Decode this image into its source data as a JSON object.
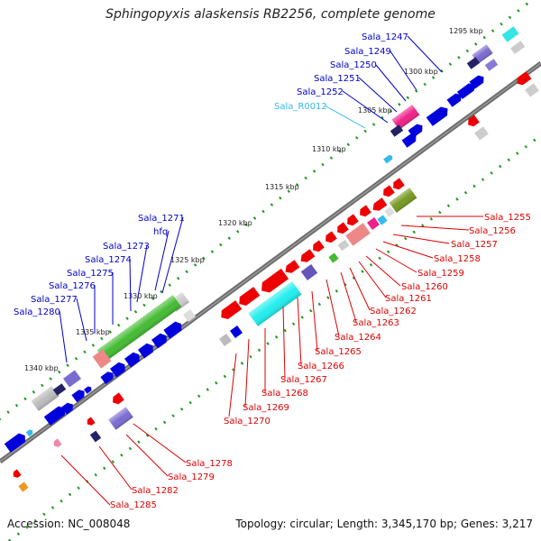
{
  "title": "Sphingopyxis alaskensis RB2256, complete genome",
  "accession": "Accession: NC_008048",
  "stats": "Topology: circular; Length: 3,345,170 bp; Genes: 3,217",
  "colors": {
    "upper_label": "#0000cc",
    "rna_label": "#33bbee",
    "lower_label": "#dd0000",
    "backbone": "#555555",
    "tick": "#119911"
  },
  "position_labels": [
    "1295 kbp",
    "1300 kbp",
    "1305 kbp",
    "1310 kbp",
    "1315 kbp",
    "1320 kbp",
    "1325 kbp",
    "1330 kbp",
    "1335 kbp",
    "1340 kbp"
  ],
  "upper_genes": [
    "Sala_1247",
    "Sala_1249",
    "Sala_1250",
    "Sala_1251",
    "Sala_1252",
    "Sala_R0012",
    "Sala_1271",
    "hfq",
    "Sala_1273",
    "Sala_1274",
    "Sala_1275",
    "Sala_1276",
    "Sala_1277",
    "Sala_1280"
  ],
  "lower_genes": [
    "Sala_1255",
    "Sala_1256",
    "Sala_1257",
    "Sala_1258",
    "Sala_1259",
    "Sala_1260",
    "Sala_1261",
    "Sala_1262",
    "Sala_1263",
    "Sala_1264",
    "Sala_1265",
    "Sala_1266",
    "Sala_1267",
    "Sala_1268",
    "Sala_1269",
    "Sala_1270",
    "Sala_1278",
    "Sala_1279",
    "Sala_1282",
    "Sala_1285"
  ]
}
